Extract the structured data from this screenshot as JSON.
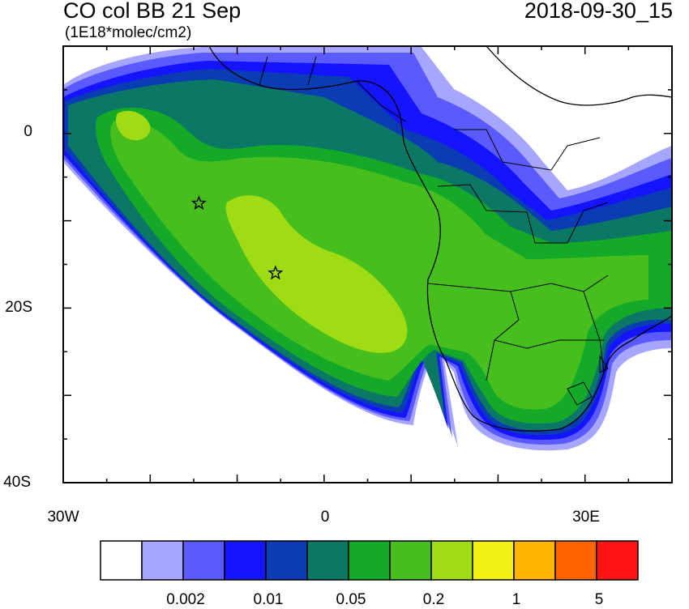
{
  "map": {
    "title": "CO col BB 21 Sep",
    "units": "(1E18*molec/cm2)",
    "datetime": "2018-09-30_15",
    "y_ticks": [
      "0",
      "20S",
      "40S"
    ],
    "x_ticks": [
      "30W",
      "0",
      "30E"
    ],
    "extent": {
      "lon": [
        -30,
        40
      ],
      "lat": [
        -40,
        10
      ]
    },
    "markers": [
      {
        "name": "star-marker",
        "lon": -14.4,
        "lat": -8.0
      },
      {
        "name": "star-marker",
        "lon": -5.6,
        "lat": -16.0
      }
    ]
  },
  "colorbar": {
    "colors": [
      "#ffffff",
      "#a6a6ff",
      "#5a5aff",
      "#1414ff",
      "#0a3cb4",
      "#0a7864",
      "#14aa28",
      "#46be1e",
      "#a0dc14",
      "#f0f014",
      "#ffb400",
      "#ff6400",
      "#ff1414"
    ],
    "labels": [
      "0.002",
      "0.01",
      "0.05",
      "0.2",
      "1",
      "5"
    ]
  }
}
